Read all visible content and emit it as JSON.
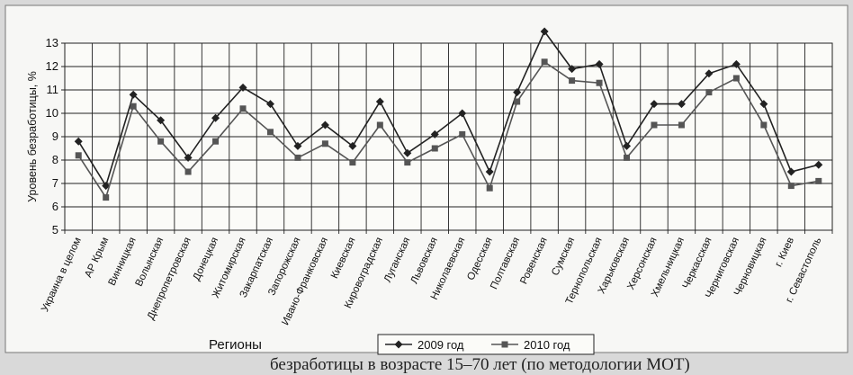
{
  "chart_data": {
    "type": "line",
    "title": "",
    "xlabel": "Регионы",
    "ylabel": "Уровень безработицы, %",
    "ylim": [
      5,
      13
    ],
    "yticks": [
      5,
      6,
      7,
      8,
      9,
      10,
      11,
      12,
      13
    ],
    "grid": true,
    "legend_position": "bottom",
    "categories": [
      "Украина в целом",
      "АР Крым",
      "Винницкая",
      "Волынская",
      "Днепропетровская",
      "Донецкая",
      "Житомирская",
      "Закарпатская",
      "Запорожская",
      "Ивано-Франковская",
      "Киевская",
      "Кировоградская",
      "Луганская",
      "Львовская",
      "Николаевская",
      "Одесская",
      "Полтавская",
      "Ровенская",
      "Сумская",
      "Тернопольская",
      "Харьковская",
      "Херсонская",
      "Хмельницкая",
      "Черкасская",
      "Черниговская",
      "Черновицкая",
      "г. Киев",
      "г. Севастополь"
    ],
    "series": [
      {
        "name": "2009 год",
        "color": "#222222",
        "marker": "diamond",
        "values": [
          8.8,
          6.9,
          10.8,
          9.7,
          8.1,
          9.8,
          11.1,
          10.4,
          8.6,
          9.5,
          8.6,
          10.5,
          8.3,
          9.1,
          10.0,
          7.5,
          10.9,
          13.5,
          11.9,
          12.1,
          8.6,
          10.4,
          10.4,
          11.7,
          12.1,
          10.4,
          7.5,
          7.8
        ]
      },
      {
        "name": "2010 год",
        "color": "#555555",
        "marker": "square",
        "values": [
          8.2,
          6.4,
          10.3,
          8.8,
          7.5,
          8.8,
          10.2,
          9.2,
          8.1,
          8.7,
          7.9,
          9.5,
          7.9,
          8.5,
          9.1,
          6.8,
          10.5,
          12.2,
          11.4,
          11.3,
          8.1,
          9.5,
          9.5,
          10.9,
          11.5,
          9.5,
          6.9,
          7.1
        ]
      }
    ]
  },
  "caption": "безработицы в возрасте 15–70 лет (по методологии МОТ)"
}
